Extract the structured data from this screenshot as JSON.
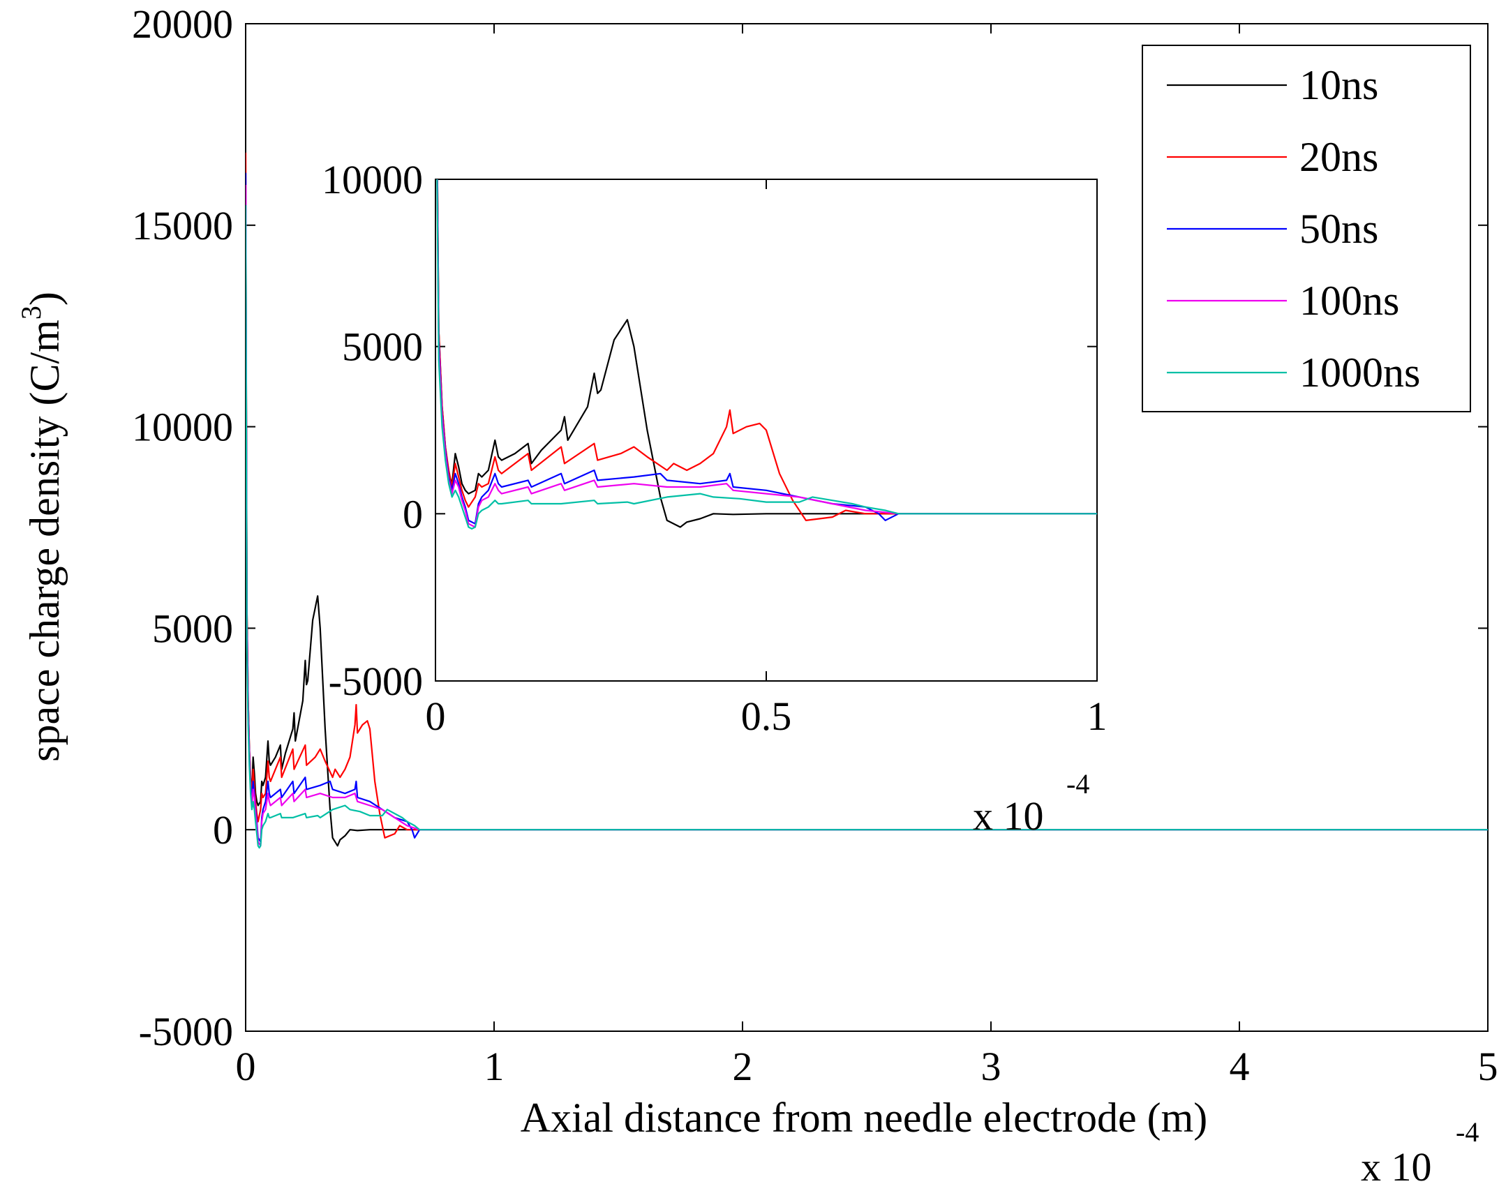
{
  "chart_data": {
    "type": "line",
    "main": {
      "title": "",
      "xlabel": "Axial distance from needle electrode (m)",
      "ylabel_main": "space charge density (C/m",
      "ylabel_sup": "3",
      "ylabel_close": ")",
      "x_exponent_base": "x 10",
      "x_exponent_power": "-4",
      "xlim": [
        0,
        5
      ],
      "ylim": [
        -5000,
        20000
      ],
      "xticks": [
        "0",
        "1",
        "2",
        "3",
        "4",
        "5"
      ],
      "xtick_values": [
        0,
        1,
        2,
        3,
        4,
        5
      ],
      "yticks": [
        "-5000",
        "0",
        "5000",
        "10000",
        "15000",
        "20000"
      ],
      "ytick_values": [
        -5000,
        0,
        5000,
        10000,
        15000,
        20000
      ]
    },
    "inset": {
      "xlim": [
        0,
        1
      ],
      "ylim": [
        -5000,
        10000
      ],
      "xticks": [
        "0",
        "0.5",
        "1"
      ],
      "xtick_values": [
        0,
        0.5,
        1
      ],
      "yticks": [
        "-5000",
        "0",
        "5000",
        "10000"
      ],
      "ytick_values": [
        -5000,
        0,
        5000,
        10000
      ],
      "x_exponent_base": "x 10",
      "x_exponent_power": "-4"
    },
    "legend": {
      "placement": "top-right"
    },
    "series": [
      {
        "name": "10ns",
        "color": "#000000",
        "x": [
          0,
          0.005,
          0.01,
          0.015,
          0.02,
          0.025,
          0.03,
          0.035,
          0.04,
          0.045,
          0.05,
          0.06,
          0.065,
          0.07,
          0.08,
          0.09,
          0.095,
          0.1,
          0.12,
          0.14,
          0.145,
          0.16,
          0.19,
          0.195,
          0.2,
          0.23,
          0.24,
          0.245,
          0.25,
          0.27,
          0.29,
          0.3,
          0.32,
          0.34,
          0.35,
          0.37,
          0.38,
          0.4,
          0.42,
          0.45,
          0.5,
          0.6,
          0.7,
          0.8,
          1.0,
          2.0,
          5.0
        ],
        "y": [
          16800,
          5500,
          3200,
          2000,
          1200,
          900,
          1800,
          1400,
          900,
          700,
          600,
          700,
          1200,
          1100,
          1300,
          2200,
          1700,
          1600,
          1800,
          2100,
          1500,
          1900,
          2500,
          2900,
          2200,
          3200,
          4200,
          3600,
          3700,
          5200,
          5800,
          5000,
          2500,
          500,
          -200,
          -400,
          -250,
          -150,
          0,
          -20,
          0,
          0,
          0,
          0,
          0,
          0,
          0
        ]
      },
      {
        "name": "20ns",
        "color": "#ff0000",
        "x": [
          0,
          0.005,
          0.01,
          0.015,
          0.02,
          0.025,
          0.03,
          0.035,
          0.04,
          0.045,
          0.05,
          0.06,
          0.065,
          0.07,
          0.08,
          0.09,
          0.095,
          0.1,
          0.14,
          0.145,
          0.19,
          0.195,
          0.24,
          0.245,
          0.28,
          0.3,
          0.32,
          0.35,
          0.36,
          0.38,
          0.4,
          0.42,
          0.44,
          0.445,
          0.45,
          0.47,
          0.49,
          0.5,
          0.52,
          0.54,
          0.56,
          0.6,
          0.62,
          0.65,
          0.7,
          1.0,
          2.0,
          5.0
        ],
        "y": [
          16800,
          5500,
          3200,
          2000,
          1300,
          800,
          1500,
          1100,
          700,
          400,
          200,
          500,
          900,
          800,
          900,
          1700,
          1300,
          1200,
          1800,
          1300,
          2000,
          1500,
          2100,
          1600,
          1800,
          2000,
          1700,
          1300,
          1500,
          1300,
          1500,
          1800,
          2600,
          3100,
          2400,
          2600,
          2700,
          2500,
          1200,
          400,
          -200,
          -100,
          100,
          0,
          0,
          0,
          0,
          0
        ]
      },
      {
        "name": "50ns",
        "color": "#0000ff",
        "x": [
          0,
          0.005,
          0.01,
          0.015,
          0.02,
          0.025,
          0.03,
          0.035,
          0.04,
          0.045,
          0.05,
          0.06,
          0.065,
          0.07,
          0.08,
          0.09,
          0.095,
          0.1,
          0.14,
          0.145,
          0.19,
          0.195,
          0.24,
          0.245,
          0.3,
          0.34,
          0.35,
          0.4,
          0.44,
          0.445,
          0.45,
          0.5,
          0.55,
          0.6,
          0.65,
          0.67,
          0.68,
          0.7,
          1.0,
          2.0,
          5.0
        ],
        "y": [
          16300,
          5200,
          3000,
          1900,
          1100,
          700,
          1200,
          900,
          500,
          200,
          -200,
          -300,
          300,
          500,
          700,
          1200,
          900,
          800,
          1000,
          800,
          1200,
          900,
          1300,
          1000,
          1100,
          1200,
          1000,
          900,
          1000,
          1200,
          800,
          700,
          500,
          300,
          200,
          0,
          -200,
          0,
          0,
          0,
          0
        ]
      },
      {
        "name": "100ns",
        "color": "#ee00ee",
        "x": [
          0,
          0.005,
          0.01,
          0.015,
          0.02,
          0.025,
          0.03,
          0.035,
          0.04,
          0.045,
          0.05,
          0.06,
          0.065,
          0.07,
          0.08,
          0.09,
          0.095,
          0.1,
          0.14,
          0.145,
          0.19,
          0.195,
          0.24,
          0.245,
          0.3,
          0.35,
          0.4,
          0.44,
          0.45,
          0.5,
          0.55,
          0.6,
          0.65,
          0.7,
          1.0,
          2.0,
          5.0
        ],
        "y": [
          16000,
          5000,
          2900,
          1800,
          1000,
          600,
          1000,
          800,
          400,
          100,
          -300,
          -400,
          200,
          400,
          500,
          900,
          700,
          600,
          800,
          600,
          900,
          700,
          1000,
          800,
          900,
          800,
          800,
          900,
          700,
          600,
          500,
          300,
          100,
          0,
          0,
          0,
          0
        ]
      },
      {
        "name": "1000ns",
        "color": "#00bfa5",
        "x": [
          0,
          0.005,
          0.01,
          0.015,
          0.02,
          0.025,
          0.03,
          0.035,
          0.04,
          0.045,
          0.05,
          0.055,
          0.06,
          0.065,
          0.07,
          0.08,
          0.09,
          0.095,
          0.1,
          0.14,
          0.145,
          0.19,
          0.24,
          0.245,
          0.29,
          0.3,
          0.35,
          0.4,
          0.42,
          0.46,
          0.5,
          0.55,
          0.57,
          0.6,
          0.63,
          0.65,
          0.68,
          0.7,
          1.0,
          2.0,
          5.0
        ],
        "y": [
          15500,
          4600,
          2600,
          1600,
          900,
          500,
          700,
          500,
          200,
          -100,
          -400,
          -450,
          -400,
          0,
          100,
          200,
          400,
          300,
          300,
          400,
          300,
          300,
          400,
          300,
          350,
          300,
          500,
          600,
          500,
          450,
          350,
          350,
          500,
          400,
          300,
          200,
          100,
          0,
          0,
          0,
          0
        ]
      }
    ]
  }
}
